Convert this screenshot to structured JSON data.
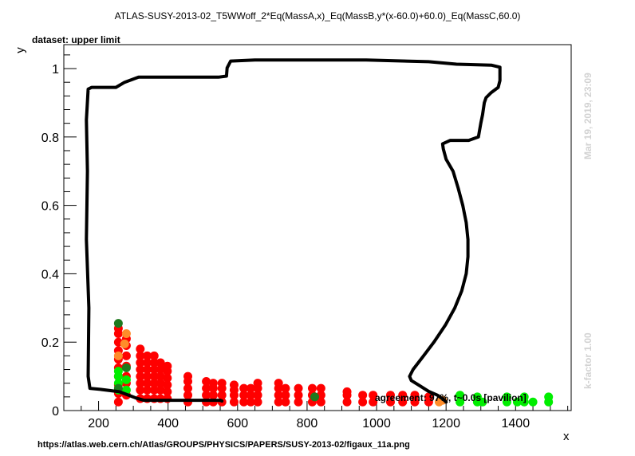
{
  "chart_data": {
    "type": "scatter",
    "title": "ATLAS-SUSY-2013-02_T5WWoff_2*Eq(MassA,x)_Eq(MassB,y*(x-60.0)+60.0)_Eq(MassC,60.0)",
    "subtitle": "dataset: upper limit",
    "xlabel": "x",
    "ylabel": "y",
    "xlim": [
      100,
      1560
    ],
    "ylim": [
      0,
      1.07
    ],
    "xticks": [
      200,
      400,
      600,
      800,
      1000,
      1200,
      1400
    ],
    "yticks": [
      0,
      0.2,
      0.4,
      0.6,
      0.8,
      1
    ],
    "timestamp": "Mar 19, 2019, 23:09",
    "kfactor": "k-factor 1.00",
    "agreement": "agreement: 97%, t~0.0s [pavilion]",
    "source_url": "https://atlas.web.cern.ch/Atlas/GROUPS/PHYSICS/PAPERS/SUSY-2013-02/figaux_11a.png",
    "colors": {
      "excluded": "#ff0000",
      "allowed": "#00ee00",
      "excluded_border": "#ff8c2a",
      "allowed_border": "#1e7a1e",
      "contour": "#000000"
    },
    "contour": [
      [
        555,
        0.028
      ],
      [
        550,
        0.03
      ],
      [
        330,
        0.03
      ],
      [
        310,
        0.036
      ],
      [
        260,
        0.055
      ],
      [
        205,
        0.062
      ],
      [
        175,
        0.065
      ],
      [
        170,
        0.1
      ],
      [
        172,
        0.3
      ],
      [
        165,
        0.5
      ],
      [
        168,
        0.7
      ],
      [
        165,
        0.85
      ],
      [
        170,
        0.94
      ],
      [
        180,
        0.945
      ],
      [
        250,
        0.945
      ],
      [
        275,
        0.96
      ],
      [
        315,
        0.975
      ],
      [
        440,
        0.975
      ],
      [
        545,
        0.975
      ],
      [
        568,
        0.978
      ],
      [
        570,
        1.002
      ],
      [
        580,
        1.022
      ],
      [
        650,
        1.025
      ],
      [
        970,
        1.025
      ],
      [
        1150,
        1.02
      ],
      [
        1230,
        1.013
      ],
      [
        1330,
        1.01
      ],
      [
        1355,
        1.004
      ],
      [
        1355,
        0.965
      ],
      [
        1350,
        0.945
      ],
      [
        1330,
        0.93
      ],
      [
        1315,
        0.915
      ],
      [
        1310,
        0.9
      ],
      [
        1305,
        0.865
      ],
      [
        1300,
        0.84
      ],
      [
        1293,
        0.8
      ],
      [
        1265,
        0.79
      ],
      [
        1212,
        0.79
      ],
      [
        1190,
        0.78
      ],
      [
        1192,
        0.765
      ],
      [
        1200,
        0.735
      ],
      [
        1220,
        0.7
      ],
      [
        1235,
        0.65
      ],
      [
        1248,
        0.6
      ],
      [
        1258,
        0.55
      ],
      [
        1263,
        0.5
      ],
      [
        1263,
        0.45
      ],
      [
        1258,
        0.4
      ],
      [
        1245,
        0.35
      ],
      [
        1225,
        0.3
      ],
      [
        1198,
        0.25
      ],
      [
        1165,
        0.2
      ],
      [
        1135,
        0.16
      ],
      [
        1105,
        0.12
      ],
      [
        1095,
        0.1
      ],
      [
        1100,
        0.088
      ],
      [
        1125,
        0.072
      ],
      [
        1150,
        0.056
      ],
      [
        1175,
        0.045
      ],
      [
        1193,
        0.032
      ],
      [
        1200,
        0.025
      ]
    ],
    "series": [
      {
        "name": "excluded",
        "color": "#ff0000",
        "points": [
          [
            257,
            0.025
          ],
          [
            257,
            0.05
          ],
          [
            257,
            0.075
          ],
          [
            257,
            0.1
          ],
          [
            257,
            0.125
          ],
          [
            257,
            0.15
          ],
          [
            257,
            0.175
          ],
          [
            257,
            0.2
          ],
          [
            257,
            0.225
          ],
          [
            257,
            0.24
          ],
          [
            280,
            0.045
          ],
          [
            280,
            0.08
          ],
          [
            280,
            0.1
          ],
          [
            280,
            0.13
          ],
          [
            280,
            0.16
          ],
          [
            280,
            0.19
          ],
          [
            280,
            0.21
          ],
          [
            320,
            0.035
          ],
          [
            320,
            0.06
          ],
          [
            320,
            0.08
          ],
          [
            320,
            0.1
          ],
          [
            320,
            0.12
          ],
          [
            320,
            0.14
          ],
          [
            320,
            0.16
          ],
          [
            320,
            0.18
          ],
          [
            340,
            0.035
          ],
          [
            340,
            0.06
          ],
          [
            340,
            0.08
          ],
          [
            340,
            0.1
          ],
          [
            340,
            0.12
          ],
          [
            340,
            0.14
          ],
          [
            340,
            0.16
          ],
          [
            360,
            0.035
          ],
          [
            360,
            0.06
          ],
          [
            360,
            0.08
          ],
          [
            360,
            0.1
          ],
          [
            360,
            0.12
          ],
          [
            360,
            0.14
          ],
          [
            360,
            0.16
          ],
          [
            378,
            0.035
          ],
          [
            378,
            0.06
          ],
          [
            378,
            0.08
          ],
          [
            378,
            0.1
          ],
          [
            378,
            0.12
          ],
          [
            378,
            0.14
          ],
          [
            398,
            0.035
          ],
          [
            398,
            0.055
          ],
          [
            398,
            0.075
          ],
          [
            398,
            0.095
          ],
          [
            398,
            0.115
          ],
          [
            398,
            0.13
          ],
          [
            457,
            0.025
          ],
          [
            457,
            0.045
          ],
          [
            457,
            0.065
          ],
          [
            457,
            0.085
          ],
          [
            457,
            0.1
          ],
          [
            510,
            0.025
          ],
          [
            510,
            0.045
          ],
          [
            510,
            0.065
          ],
          [
            510,
            0.085
          ],
          [
            530,
            0.025
          ],
          [
            530,
            0.045
          ],
          [
            530,
            0.065
          ],
          [
            530,
            0.08
          ],
          [
            555,
            0.025
          ],
          [
            555,
            0.045
          ],
          [
            555,
            0.065
          ],
          [
            555,
            0.08
          ],
          [
            590,
            0.025
          ],
          [
            590,
            0.045
          ],
          [
            590,
            0.06
          ],
          [
            590,
            0.075
          ],
          [
            618,
            0.025
          ],
          [
            618,
            0.045
          ],
          [
            618,
            0.065
          ],
          [
            638,
            0.025
          ],
          [
            638,
            0.045
          ],
          [
            638,
            0.065
          ],
          [
            658,
            0.025
          ],
          [
            658,
            0.045
          ],
          [
            658,
            0.065
          ],
          [
            658,
            0.08
          ],
          [
            718,
            0.025
          ],
          [
            718,
            0.045
          ],
          [
            718,
            0.065
          ],
          [
            718,
            0.08
          ],
          [
            738,
            0.025
          ],
          [
            738,
            0.045
          ],
          [
            738,
            0.065
          ],
          [
            775,
            0.025
          ],
          [
            775,
            0.045
          ],
          [
            775,
            0.065
          ],
          [
            815,
            0.025
          ],
          [
            815,
            0.045
          ],
          [
            815,
            0.065
          ],
          [
            840,
            0.025
          ],
          [
            840,
            0.045
          ],
          [
            840,
            0.065
          ],
          [
            915,
            0.025
          ],
          [
            915,
            0.045
          ],
          [
            915,
            0.055
          ],
          [
            960,
            0.025
          ],
          [
            960,
            0.045
          ],
          [
            990,
            0.025
          ],
          [
            990,
            0.045
          ],
          [
            1040,
            0.025
          ],
          [
            1040,
            0.045
          ],
          [
            1075,
            0.025
          ],
          [
            1075,
            0.045
          ],
          [
            1110,
            0.025
          ],
          [
            1110,
            0.045
          ],
          [
            1150,
            0.025
          ],
          [
            1150,
            0.04
          ]
        ]
      },
      {
        "name": "allowed",
        "color": "#00ee00",
        "points": [
          [
            257,
            0.06
          ],
          [
            257,
            0.08
          ],
          [
            257,
            0.1
          ],
          [
            257,
            0.115
          ],
          [
            280,
            0.06
          ],
          [
            280,
            0.09
          ],
          [
            1240,
            0.025
          ],
          [
            1240,
            0.045
          ],
          [
            1290,
            0.025
          ],
          [
            1290,
            0.04
          ],
          [
            1305,
            0.025
          ],
          [
            1375,
            0.025
          ],
          [
            1375,
            0.04
          ],
          [
            1405,
            0.025
          ],
          [
            1425,
            0.025
          ],
          [
            1425,
            0.04
          ],
          [
            1450,
            0.025
          ],
          [
            1495,
            0.025
          ],
          [
            1495,
            0.04
          ]
        ]
      },
      {
        "name": "excluded_border",
        "color": "#ff8c2a",
        "points": [
          [
            257,
            0.16
          ],
          [
            280,
            0.225
          ],
          [
            275,
            0.195
          ],
          [
            1180,
            0.025
          ],
          [
            1190,
            0.03
          ]
        ]
      },
      {
        "name": "allowed_border",
        "color": "#1e7a1e",
        "points": [
          [
            257,
            0.255
          ],
          [
            257,
            0.065
          ],
          [
            280,
            0.125
          ],
          [
            822,
            0.04
          ]
        ]
      }
    ]
  }
}
